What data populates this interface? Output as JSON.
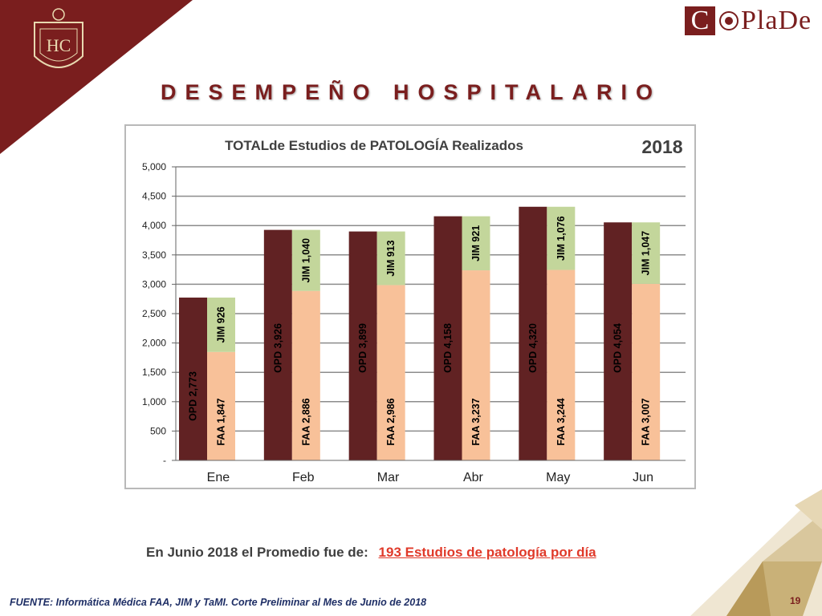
{
  "slide": {
    "title": "DESEMPEÑO HOSPITALARIO",
    "logo_letter": "C",
    "logo_rest": "PlaDe",
    "summary_prefix": "En Junio 2018 el Promedio  fue de:",
    "summary_highlight": "193 Estudios de patología por día",
    "source": "FUENTE: Informática Médica  FAA, JIM y TaMI. Corte Preliminar al Mes de Junio de 2018",
    "page_number": "19",
    "crest_text": "HC",
    "colors": {
      "brand": "#7a1e1e",
      "highlight": "#e03a2a",
      "source_text": "#1f2f66"
    }
  },
  "chart_data": {
    "type": "bar",
    "title": "TOTALde  Estudios de PATOLOGÍA  Realizados",
    "year_label": "2018",
    "categories": [
      "Ene",
      "Feb",
      "Mar",
      "Abr",
      "May",
      "Jun"
    ],
    "ylim": [
      0,
      5000
    ],
    "yticks": [
      0,
      500,
      1000,
      1500,
      2000,
      2500,
      3000,
      3500,
      4000,
      4500,
      5000
    ],
    "ytick_labels": [
      "-",
      "500",
      "1,000",
      "1,500",
      "2,000",
      "2,500",
      "3,000",
      "3,500",
      "4,000",
      "4,500",
      "5,000"
    ],
    "grid": true,
    "series": [
      {
        "name": "OPD",
        "values": [
          2773,
          3926,
          3899,
          4158,
          4320,
          4054
        ],
        "labels": [
          "OPD  2,773",
          "OPD  3,926",
          "OPD  3,899",
          "OPD  4,158",
          "OPD  4,320",
          "OPD  4,054"
        ],
        "color": "#612223"
      },
      {
        "name": "FAA",
        "values": [
          1847,
          2886,
          2986,
          3237,
          3244,
          3007
        ],
        "labels": [
          "FAA  1,847",
          "FAA  2,886",
          "FAA  2,986",
          "FAA  3,237",
          "FAA  3,244",
          "FAA  3,007"
        ],
        "color": "#f8c199",
        "stack": "right"
      },
      {
        "name": "JIM",
        "values": [
          926,
          1040,
          913,
          921,
          1076,
          1047
        ],
        "labels": [
          "JIM  926",
          "JIM  1,040",
          "JIM  913",
          "JIM  921",
          "JIM  1,076",
          "JIM  1,047"
        ],
        "color": "#c3d69b",
        "stack": "right"
      }
    ]
  }
}
